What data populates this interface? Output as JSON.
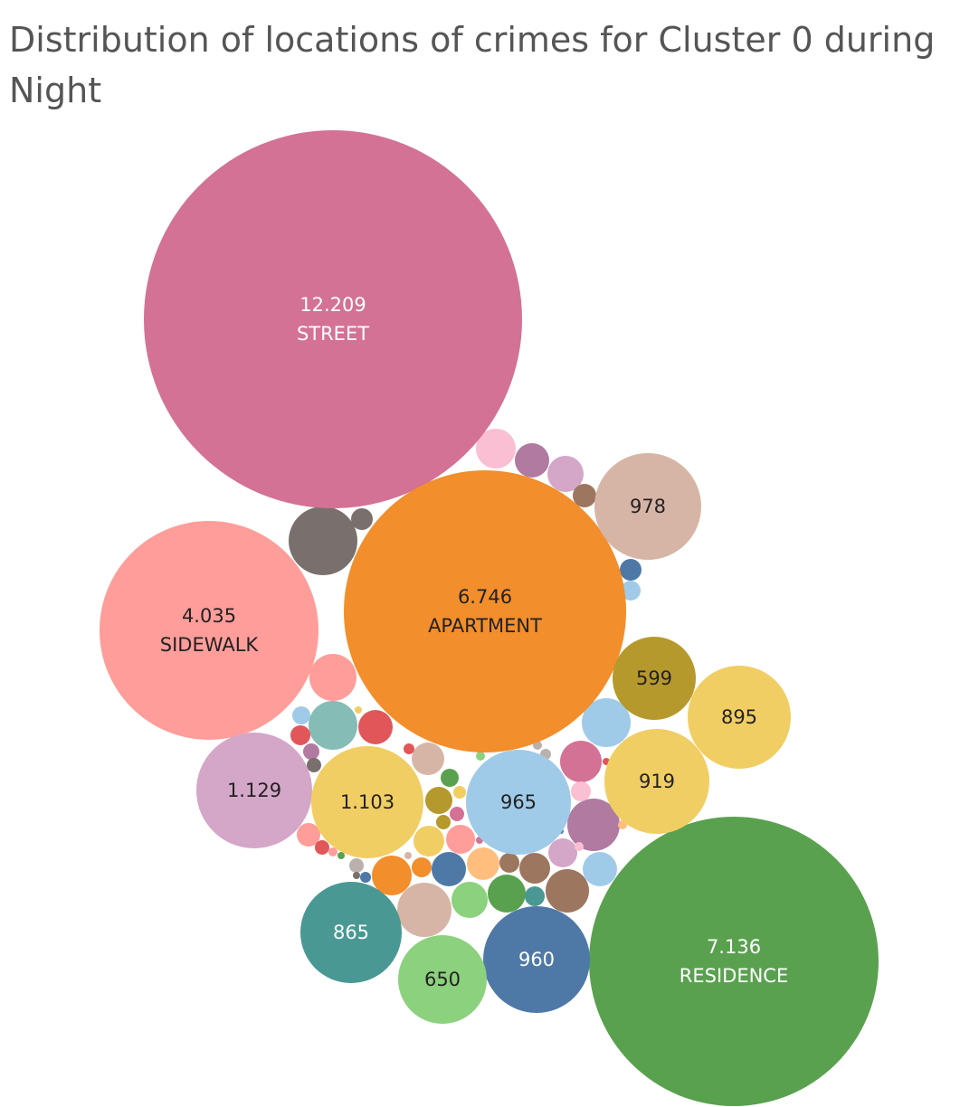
{
  "chart_data": {
    "type": "bubble",
    "title": "Distribution of locations of crimes for Cluster 0 during Night",
    "labeled_bubbles": [
      {
        "value": "12.209",
        "name": "STREET",
        "color": "#d37295",
        "text_color": "#ffffff"
      },
      {
        "value": "7.136",
        "name": "RESIDENCE",
        "color": "#59a14f",
        "text_color": "#ffffff"
      },
      {
        "value": "6.746",
        "name": "APARTMENT",
        "color": "#f28e2b",
        "text_color": "#222222"
      },
      {
        "value": "4.035",
        "name": "SIDEWALK",
        "color": "#ff9d9a",
        "text_color": "#222222"
      },
      {
        "value": "1.129",
        "name": "",
        "color": "#d4a6c8",
        "text_color": "#222222"
      },
      {
        "value": "1.103",
        "name": "",
        "color": "#f1ce63",
        "text_color": "#222222"
      },
      {
        "value": "978",
        "name": "",
        "color": "#d7b5a6",
        "text_color": "#222222"
      },
      {
        "value": "965",
        "name": "",
        "color": "#a0cbe8",
        "text_color": "#222222"
      },
      {
        "value": "960",
        "name": "",
        "color": "#4e79a7",
        "text_color": "#ffffff"
      },
      {
        "value": "919",
        "name": "",
        "color": "#f1ce63",
        "text_color": "#222222"
      },
      {
        "value": "895",
        "name": "",
        "color": "#f1ce63",
        "text_color": "#222222"
      },
      {
        "value": "865",
        "name": "",
        "color": "#499894",
        "text_color": "#ffffff"
      },
      {
        "value": "650",
        "name": "",
        "color": "#8cd17d",
        "text_color": "#222222"
      },
      {
        "value": "599",
        "name": "",
        "color": "#b6992d",
        "text_color": "#222222"
      }
    ],
    "unlabeled_bubbles": [
      {
        "value": 255,
        "color": "#79706e"
      },
      {
        "value": 238,
        "color": "#d37295"
      },
      {
        "value": 215,
        "color": "#d7b5a6"
      },
      {
        "value": 205,
        "color": "#a0cbe8"
      },
      {
        "value": 202,
        "color": "#a0cbe8"
      },
      {
        "value": 200,
        "color": "#b07aa1"
      },
      {
        "value": 195,
        "color": "#4e79a7"
      },
      {
        "value": 195,
        "color": "#d4a6c8"
      },
      {
        "value": 182,
        "color": "#86bcb6"
      },
      {
        "value": 168,
        "color": "#ff9d9a"
      },
      {
        "value": 164,
        "color": "#9d7660"
      },
      {
        "value": 150,
        "color": "#8cd17d"
      },
      {
        "value": 145,
        "color": "#59a14f"
      },
      {
        "value": 135,
        "color": "#9d7660"
      },
      {
        "value": 125,
        "color": "#f28e2b"
      },
      {
        "value": 115,
        "color": "#ffbe7d"
      },
      {
        "value": 110,
        "color": "#a0cbe8"
      },
      {
        "value": 105,
        "color": "#9d7660"
      },
      {
        "value": 98,
        "color": "#ff9d9a"
      },
      {
        "value": 96,
        "color": "#fabfd2"
      },
      {
        "value": 92,
        "color": "#e15759"
      },
      {
        "value": 88,
        "color": "#f1ce63"
      },
      {
        "value": 85,
        "color": "#b07aa1"
      },
      {
        "value": 80,
        "color": "#d4a6c8"
      },
      {
        "value": 78,
        "color": "#b6992d"
      },
      {
        "value": 75,
        "color": "#d7b5a6"
      },
      {
        "value": 66,
        "color": "#ff9d9a"
      },
      {
        "value": 46,
        "color": "#f28e2b"
      },
      {
        "value": 44,
        "color": "#4e79a7"
      },
      {
        "value": 43,
        "color": "#9d7660"
      },
      {
        "value": 42,
        "color": "#b07aa1"
      },
      {
        "value": 38,
        "color": "#79706e"
      },
      {
        "value": 36,
        "color": "#499894"
      },
      {
        "value": 33,
        "color": "#fabfd2"
      },
      {
        "value": 30,
        "color": "#a0cbe8"
      },
      {
        "value": 29,
        "color": "#e15759"
      },
      {
        "value": 26,
        "color": "#bab0ac"
      },
      {
        "value": 25,
        "color": "#bab0ac"
      },
      {
        "value": 24,
        "color": "#59a14f"
      },
      {
        "value": 22,
        "color": "#b6992d"
      },
      {
        "value": 20,
        "color": "#d37295"
      },
      {
        "value": 18,
        "color": "#79706e"
      },
      {
        "value": 16,
        "color": "#e15759"
      },
      {
        "value": 15,
        "color": "#f1ce63"
      },
      {
        "value": 14,
        "color": "#4e79a7"
      },
      {
        "value": 13,
        "color": "#ffbe7d"
      },
      {
        "value": 12,
        "color": "#8cd17d"
      },
      {
        "value": 11,
        "color": "#fabfd2"
      },
      {
        "value": 10,
        "color": "#bab0ac"
      },
      {
        "value": 10,
        "color": "#e15759"
      },
      {
        "value": 9,
        "color": "#ff9d9a"
      },
      {
        "value": 9,
        "color": "#d37295"
      },
      {
        "value": 8,
        "color": "#59a14f"
      },
      {
        "value": 7,
        "color": "#79706e"
      },
      {
        "value": 6,
        "color": "#f1ce63"
      },
      {
        "value": 5,
        "color": "#4e79a7"
      },
      {
        "value": 5,
        "color": "#e15759"
      },
      {
        "value": 4,
        "color": "#d7b5a6"
      }
    ]
  }
}
